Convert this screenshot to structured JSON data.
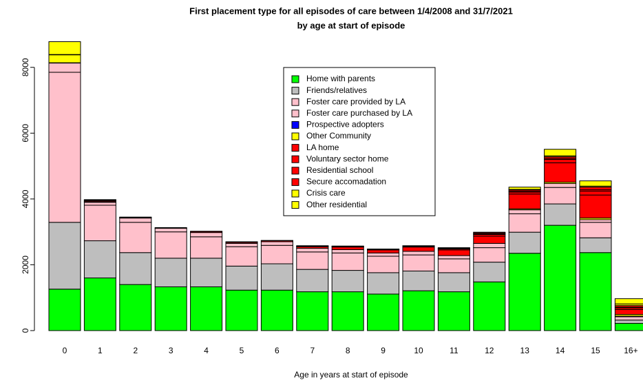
{
  "chart_data": {
    "type": "stacked_bar",
    "title": "First placement type for all episodes of care between 1/4/2008 and 31/7/2021",
    "subtitle": "by age at start of episode",
    "x_label": "Age in years at start of episode",
    "categories": [
      "0",
      "1",
      "2",
      "3",
      "4",
      "5",
      "6",
      "7",
      "8",
      "9",
      "10",
      "11",
      "12",
      "13",
      "14",
      "15",
      "16+"
    ],
    "ylim": [
      0,
      9000
    ],
    "yticks": [
      0,
      2000,
      4000,
      6000,
      8000
    ],
    "series": [
      {
        "name": "Home with parents",
        "color": "#00ff00",
        "values": [
          1260,
          1600,
          1400,
          1330,
          1330,
          1230,
          1230,
          1180,
          1180,
          1110,
          1210,
          1180,
          1480,
          2350,
          3200,
          2370,
          220
        ]
      },
      {
        "name": "Friends/relatives",
        "color": "#bebebe",
        "values": [
          2030,
          1130,
          970,
          870,
          870,
          730,
          800,
          680,
          650,
          650,
          600,
          580,
          600,
          640,
          650,
          450,
          100
        ]
      },
      {
        "name": "Foster care provided by LA",
        "color": "#ffc0cb",
        "values": [
          4560,
          1080,
          920,
          800,
          650,
          590,
          560,
          530,
          530,
          500,
          490,
          420,
          440,
          560,
          500,
          470,
          100
        ]
      },
      {
        "name": "Foster care purchased by LA",
        "color": "#ffc0cb",
        "values": [
          280,
          90,
          130,
          110,
          130,
          100,
          110,
          110,
          100,
          100,
          110,
          100,
          130,
          120,
          120,
          80,
          20
        ]
      },
      {
        "name": "Prospective adopters",
        "color": "#0000ff",
        "values": [
          10,
          10,
          0,
          0,
          0,
          0,
          0,
          0,
          0,
          0,
          0,
          0,
          0,
          0,
          0,
          0,
          0
        ]
      },
      {
        "name": "Other Community",
        "color": "#ffff00",
        "values": [
          240,
          10,
          10,
          0,
          0,
          0,
          0,
          0,
          0,
          0,
          0,
          0,
          0,
          30,
          40,
          50,
          50
        ]
      },
      {
        "name": "LA home",
        "color": "#ff0000",
        "values": [
          0,
          30,
          10,
          0,
          30,
          30,
          30,
          50,
          80,
          90,
          130,
          170,
          220,
          450,
          590,
          700,
          150
        ]
      },
      {
        "name": "Voluntary sector home",
        "color": "#ff0000",
        "values": [
          0,
          10,
          0,
          0,
          0,
          10,
          0,
          10,
          10,
          10,
          20,
          30,
          50,
          60,
          100,
          120,
          50
        ]
      },
      {
        "name": "Residential school",
        "color": "#ff0000",
        "values": [
          0,
          0,
          0,
          0,
          0,
          0,
          0,
          10,
          10,
          10,
          10,
          10,
          20,
          20,
          30,
          40,
          20
        ]
      },
      {
        "name": "Secure accomadation",
        "color": "#ff0000",
        "values": [
          0,
          0,
          0,
          0,
          0,
          0,
          0,
          0,
          0,
          0,
          0,
          10,
          30,
          40,
          50,
          80,
          50
        ]
      },
      {
        "name": "Crisis care",
        "color": "#ffff00",
        "values": [
          10,
          0,
          0,
          0,
          0,
          0,
          0,
          0,
          0,
          0,
          0,
          0,
          0,
          20,
          30,
          30,
          50
        ]
      },
      {
        "name": "Other residential",
        "color": "#ffff00",
        "values": [
          390,
          20,
          10,
          20,
          10,
          10,
          10,
          10,
          10,
          10,
          10,
          20,
          20,
          70,
          200,
          160,
          160
        ]
      }
    ]
  }
}
